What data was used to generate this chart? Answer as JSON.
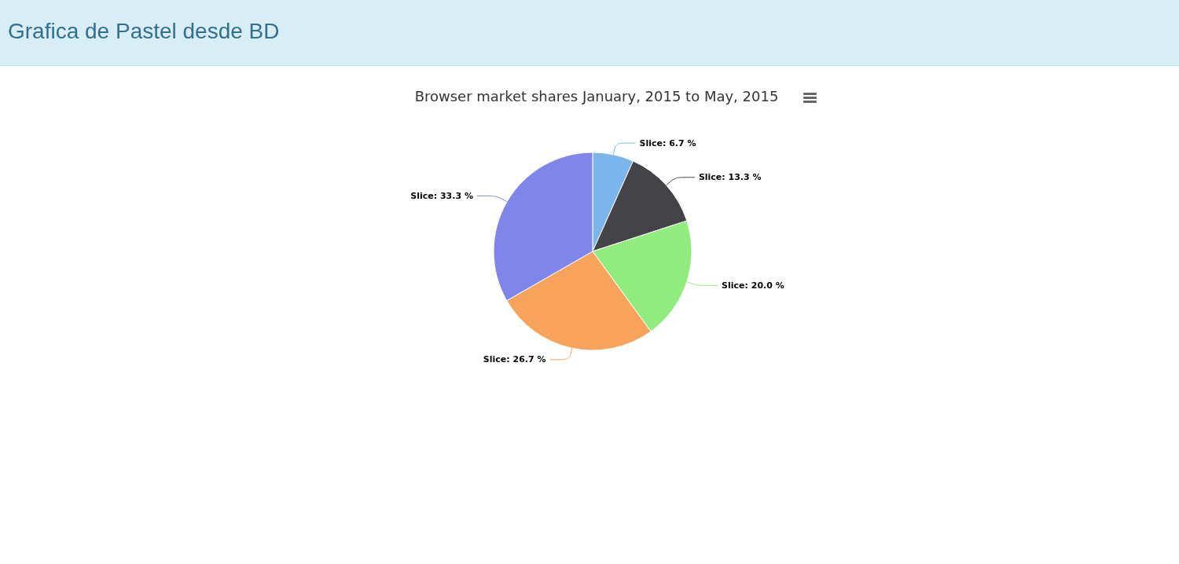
{
  "chart_data": {
    "type": "pie",
    "title": "Browser market shares January, 2015 to May, 2015",
    "annotations": [
      "Grafica de Pastel desde BD"
    ],
    "categories": [
      "Slice",
      "Slice",
      "Slice",
      "Slice",
      "Slice"
    ],
    "values": [
      6.7,
      13.3,
      20.0,
      26.7,
      33.3
    ],
    "value_labels": [
      "6.7 %",
      "13.3 %",
      "20.0 %",
      "26.7 %",
      "33.3 %"
    ],
    "colors": [
      "#7cb5ec",
      "#434348",
      "#90ed7d",
      "#f7a35c",
      "#8085e9"
    ],
    "legend": false
  }
}
